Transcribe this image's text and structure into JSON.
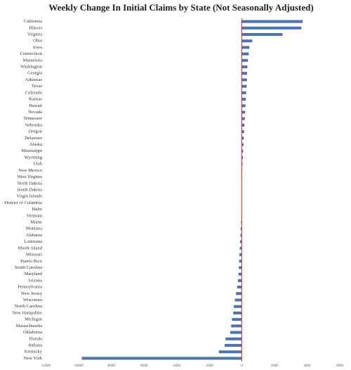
{
  "chart_data": {
    "type": "barh",
    "title": "Weekly Change In Initial Claims by State (Not Seasonally Adjusted)",
    "categories": [
      "California",
      "Illinois",
      "Virginia",
      "Ohio",
      "Iowa",
      "Connecticut",
      "Minnesota",
      "Washington",
      "Georgia",
      "Arkansas",
      "Texas",
      "Colorado",
      "Kansas",
      "Hawaii",
      "Nevada",
      "Tennessee",
      "Nebraska",
      "Oregon",
      "Delaware",
      "Alaska",
      "Mississippi",
      "Wyoming",
      "Utah",
      "New Mexico",
      "West Virginia",
      "North Dakota",
      "South Dakota",
      "Virgin Islands",
      "District of Columbia",
      "Idaho",
      "Vermont",
      "Maine",
      "Montana",
      "Alabama",
      "Louisiana",
      "Rhode Island",
      "Missouri",
      "Puerto Rico",
      "South Carolina",
      "Maryland",
      "Arizona",
      "Pennsylvania",
      "New Jersey",
      "Wisconsin",
      "North Carolina",
      "New Hampshire",
      "Michigan",
      "Massachusetts",
      "Oklahoma",
      "Florida",
      "Indiana",
      "Kentucky",
      "New York"
    ],
    "values": [
      3730,
      3650,
      2500,
      650,
      470,
      430,
      380,
      350,
      330,
      320,
      300,
      270,
      250,
      230,
      210,
      190,
      170,
      150,
      130,
      110,
      90,
      70,
      50,
      30,
      20,
      10,
      5,
      0,
      -5,
      -10,
      -20,
      -40,
      -60,
      -80,
      -100,
      -120,
      -140,
      -160,
      -180,
      -200,
      -230,
      -280,
      -350,
      -420,
      -480,
      -520,
      -600,
      -650,
      -700,
      -990,
      -1050,
      -1400,
      -9790
    ],
    "color": "#4a74b6",
    "xlim": [
      -12000,
      6000
    ],
    "xticks": [
      -12000,
      -10000,
      -8000,
      -6000,
      -4000,
      -2000,
      0,
      2000,
      4000,
      6000
    ],
    "grid": false
  }
}
